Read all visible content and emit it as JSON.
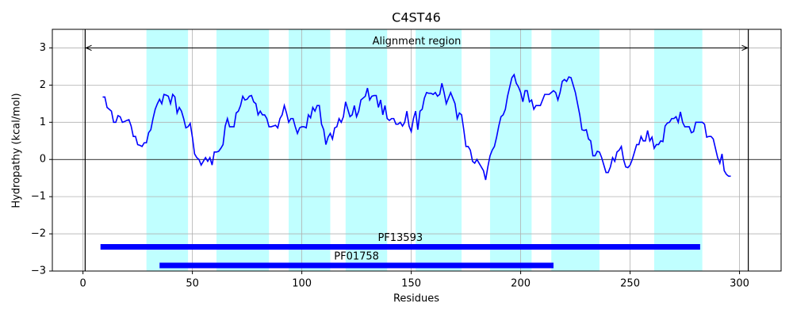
{
  "chart_data": {
    "type": "line",
    "title": "C4ST46",
    "xlabel": "Residues",
    "ylabel": "Hydropathy (kcal/mol)",
    "xlim": [
      -14,
      319
    ],
    "ylim": [
      -3,
      3.5
    ],
    "xticks": [
      0,
      50,
      100,
      150,
      200,
      250,
      300
    ],
    "yticks": [
      {
        "value": -3,
        "label": "−3"
      },
      {
        "value": -2,
        "label": "−2"
      },
      {
        "value": -1,
        "label": "−1"
      },
      0,
      1,
      2,
      3
    ],
    "grid": true,
    "color": "#0000ff",
    "region_color": "#c0ffff",
    "regions": [
      [
        29,
        48
      ],
      [
        61,
        85
      ],
      [
        94,
        113
      ],
      [
        120,
        139
      ],
      [
        152,
        173
      ],
      [
        186,
        205
      ],
      [
        214,
        236
      ],
      [
        261,
        283
      ]
    ],
    "alignment_region": {
      "label": "Alignment region",
      "start": 1,
      "end": 304,
      "y": 3
    },
    "domains": [
      {
        "name": "PF13593",
        "start": 8,
        "end": 282,
        "y": -2.35
      },
      {
        "name": "PF01758",
        "start": 35,
        "end": 215,
        "y": -2.85
      }
    ],
    "x": [
      9,
      10,
      11,
      12,
      13,
      14,
      15,
      16,
      17,
      18,
      19,
      20,
      21,
      22,
      23,
      24,
      25,
      26,
      27,
      28,
      29,
      30,
      31,
      32,
      33,
      34,
      35,
      36,
      37,
      38,
      39,
      40,
      41,
      42,
      43,
      44,
      45,
      46,
      47,
      48,
      49,
      50,
      51,
      52,
      53,
      54,
      55,
      56,
      57,
      58,
      59,
      60,
      61,
      62,
      63,
      64,
      65,
      66,
      67,
      68,
      69,
      70,
      71,
      72,
      73,
      74,
      75,
      76,
      77,
      78,
      79,
      80,
      81,
      82,
      83,
      84,
      85,
      86,
      87,
      88,
      89,
      90,
      91,
      92,
      93,
      94,
      95,
      96,
      97,
      98,
      99,
      100,
      101,
      102,
      103,
      104,
      105,
      106,
      107,
      108,
      109,
      110,
      111,
      112,
      113,
      114,
      115,
      116,
      117,
      118,
      119,
      120,
      121,
      122,
      123,
      124,
      125,
      126,
      127,
      128,
      129,
      130,
      131,
      132,
      133,
      134,
      135,
      136,
      137,
      138,
      139,
      140,
      141,
      142,
      143,
      144,
      145,
      146,
      147,
      148,
      149,
      150,
      151,
      152,
      153,
      154,
      155,
      156,
      157,
      158,
      159,
      160,
      161,
      162,
      163,
      164,
      165,
      166,
      167,
      168,
      169,
      170,
      171,
      172,
      173,
      174,
      175,
      176,
      177,
      178,
      179,
      180,
      181,
      182,
      183,
      184,
      185,
      186,
      187,
      188,
      189,
      190,
      191,
      192,
      193,
      194,
      195,
      196,
      197,
      198,
      199,
      200,
      201,
      202,
      203,
      204,
      205,
      206,
      207,
      208,
      209,
      210,
      211,
      212,
      213,
      214,
      215,
      216,
      217,
      218,
      219,
      220,
      221,
      222,
      223,
      224,
      225,
      226,
      227,
      228,
      229,
      230,
      231,
      232,
      233,
      234,
      235,
      236,
      237,
      238,
      239,
      240,
      241,
      242,
      243,
      244,
      245,
      246,
      247,
      248,
      249,
      250,
      251,
      252,
      253,
      254,
      255,
      256,
      257,
      258,
      259,
      260,
      261,
      262,
      263,
      264,
      265,
      266,
      267,
      268,
      269,
      270,
      271,
      272,
      273,
      274,
      275,
      276,
      277,
      278,
      279,
      280,
      281,
      282,
      283,
      284,
      285,
      286,
      287,
      288,
      289,
      290,
      291,
      292,
      293,
      294,
      295,
      296
    ],
    "values": [
      1.68,
      1.68,
      1.4,
      1.35,
      1.3,
      1.0,
      1.0,
      1.18,
      1.15,
      1.0,
      1.02,
      1.05,
      1.07,
      0.9,
      0.62,
      0.62,
      0.4,
      0.38,
      0.35,
      0.45,
      0.45,
      0.72,
      0.8,
      1.1,
      1.35,
      1.5,
      1.62,
      1.5,
      1.75,
      1.73,
      1.7,
      1.5,
      1.75,
      1.68,
      1.25,
      1.4,
      1.3,
      1.1,
      0.85,
      0.88,
      0.97,
      0.6,
      0.15,
      0.05,
      0.0,
      -0.15,
      -0.05,
      0.05,
      -0.05,
      0.05,
      -0.15,
      0.2,
      0.2,
      0.22,
      0.3,
      0.4,
      0.9,
      1.1,
      0.88,
      0.88,
      0.88,
      1.25,
      1.3,
      1.45,
      1.7,
      1.6,
      1.62,
      1.7,
      1.72,
      1.55,
      1.5,
      1.2,
      1.3,
      1.2,
      1.2,
      1.1,
      0.88,
      0.88,
      0.9,
      0.92,
      0.85,
      1.1,
      1.2,
      1.45,
      1.25,
      1.0,
      1.1,
      1.1,
      0.88,
      0.7,
      0.85,
      0.88,
      0.88,
      0.85,
      1.2,
      1.12,
      1.4,
      1.3,
      1.45,
      1.45,
      0.95,
      0.8,
      0.4,
      0.6,
      0.7,
      0.55,
      0.85,
      0.88,
      1.1,
      1.0,
      1.15,
      1.55,
      1.35,
      1.15,
      1.2,
      1.45,
      1.15,
      1.3,
      1.6,
      1.65,
      1.7,
      1.92,
      1.6,
      1.7,
      1.72,
      1.72,
      1.4,
      1.6,
      1.2,
      1.45,
      1.1,
      1.05,
      1.1,
      1.1,
      0.95,
      0.95,
      1.0,
      0.9,
      1.0,
      1.3,
      0.9,
      0.75,
      1.1,
      1.3,
      0.8,
      1.3,
      1.35,
      1.65,
      1.8,
      1.78,
      1.78,
      1.75,
      1.8,
      1.7,
      1.75,
      2.05,
      1.8,
      1.5,
      1.65,
      1.8,
      1.65,
      1.5,
      1.1,
      1.25,
      1.2,
      0.8,
      0.35,
      0.35,
      0.25,
      -0.05,
      -0.1,
      0.0,
      -0.1,
      -0.2,
      -0.3,
      -0.55,
      -0.2,
      0.1,
      0.25,
      0.35,
      0.6,
      0.9,
      1.15,
      1.2,
      1.35,
      1.7,
      1.95,
      2.2,
      2.28,
      2.05,
      1.95,
      1.8,
      1.55,
      1.85,
      1.85,
      1.55,
      1.6,
      1.35,
      1.45,
      1.45,
      1.45,
      1.6,
      1.75,
      1.75,
      1.75,
      1.8,
      1.85,
      1.8,
      1.6,
      1.8,
      2.1,
      2.15,
      2.1,
      2.22,
      2.2,
      2.0,
      1.8,
      1.5,
      1.2,
      0.8,
      0.78,
      0.8,
      0.55,
      0.5,
      0.1,
      0.1,
      0.22,
      0.2,
      0.05,
      -0.15,
      -0.35,
      -0.35,
      -0.2,
      0.05,
      -0.05,
      0.2,
      0.25,
      0.35,
      0.0,
      -0.2,
      -0.22,
      -0.15,
      0.0,
      0.2,
      0.4,
      0.4,
      0.62,
      0.5,
      0.5,
      0.78,
      0.5,
      0.6,
      0.3,
      0.4,
      0.4,
      0.5,
      0.48,
      0.9,
      0.98,
      1.0,
      1.1,
      1.1,
      1.15,
      1.0,
      1.28,
      1.0,
      0.88,
      0.88,
      0.88,
      0.72,
      0.75,
      1.0,
      1.0,
      1.0,
      1.0,
      0.95,
      0.6,
      0.62,
      0.62,
      0.55,
      0.3,
      0.05,
      -0.1,
      0.15,
      -0.3,
      -0.4,
      -0.45,
      -0.45
    ]
  }
}
